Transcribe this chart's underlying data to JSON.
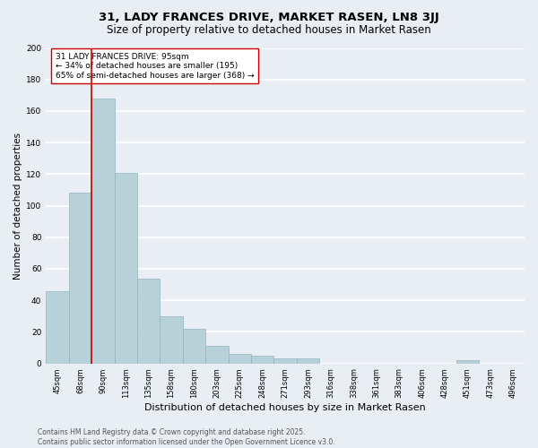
{
  "title": "31, LADY FRANCES DRIVE, MARKET RASEN, LN8 3JJ",
  "subtitle": "Size of property relative to detached houses in Market Rasen",
  "xlabel": "Distribution of detached houses by size in Market Rasen",
  "ylabel": "Number of detached properties",
  "categories": [
    "45sqm",
    "68sqm",
    "90sqm",
    "113sqm",
    "135sqm",
    "158sqm",
    "180sqm",
    "203sqm",
    "225sqm",
    "248sqm",
    "271sqm",
    "293sqm",
    "316sqm",
    "338sqm",
    "361sqm",
    "383sqm",
    "406sqm",
    "428sqm",
    "451sqm",
    "473sqm",
    "496sqm"
  ],
  "values": [
    46,
    108,
    168,
    121,
    54,
    30,
    22,
    11,
    6,
    5,
    3,
    3,
    0,
    0,
    0,
    0,
    0,
    0,
    2,
    0,
    0
  ],
  "bar_color": "#b8d0d8",
  "bar_edgecolor": "#8fb5c0",
  "highlight_line_color": "#cc0000",
  "highlight_bar_index": 2,
  "annotation_text": "31 LADY FRANCES DRIVE: 95sqm\n← 34% of detached houses are smaller (195)\n65% of semi-detached houses are larger (368) →",
  "annotation_box_facecolor": "#ffffff",
  "annotation_box_edgecolor": "#cc0000",
  "ylim": [
    0,
    200
  ],
  "yticks": [
    0,
    20,
    40,
    60,
    80,
    100,
    120,
    140,
    160,
    180,
    200
  ],
  "background_color": "#e8eef4",
  "grid_color": "#ffffff",
  "footer": "Contains HM Land Registry data © Crown copyright and database right 2025.\nContains public sector information licensed under the Open Government Licence v3.0.",
  "title_fontsize": 9.5,
  "subtitle_fontsize": 8.5,
  "xlabel_fontsize": 8,
  "ylabel_fontsize": 7.5,
  "tick_fontsize": 6,
  "annotation_fontsize": 6.5,
  "footer_fontsize": 5.5
}
